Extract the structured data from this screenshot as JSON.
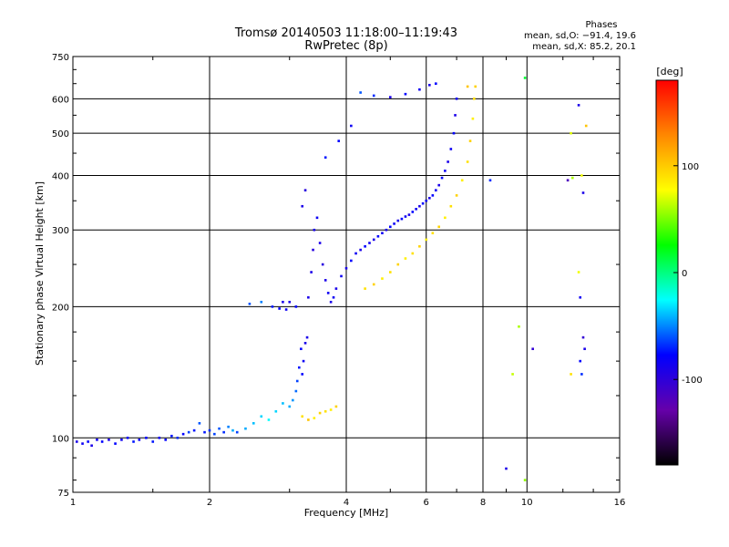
{
  "chart_data": {
    "type": "scatter",
    "title": "Tromsø 20140503 11:18:00–11:19:43",
    "subtitle": "RwPretec (8p)",
    "xlabel": "Frequency [MHz]",
    "ylabel": "Stationary phase Virtual Height [km]",
    "x_scale": "log",
    "y_scale": "log",
    "xlim": [
      1,
      16
    ],
    "ylim": [
      75,
      750
    ],
    "x_ticks": [
      1,
      2,
      4,
      6,
      8,
      10,
      16
    ],
    "y_ticks": [
      75,
      100,
      200,
      300,
      400,
      500,
      600,
      750
    ],
    "grid_x": [
      2,
      4,
      6,
      8,
      10
    ],
    "grid_y": [
      100,
      200,
      300,
      400,
      500,
      600
    ],
    "phase_stats": {
      "heading": "Phases",
      "o_line": "mean, sd,O: −91.4, 19.6",
      "x_line": "mean, sd,X:  85.2, 20.1"
    },
    "colorbar": {
      "unit_label": "[deg]",
      "range": [
        -180,
        180
      ],
      "ticks": [
        100,
        0,
        -100
      ],
      "colors": [
        "#ff0000",
        "#ff8800",
        "#ffff00",
        "#00ff00",
        "#00ffff",
        "#0000ff",
        "#6600aa",
        "#000000"
      ]
    },
    "series": [
      {
        "values": [
          [
            1.02,
            98,
            -110
          ],
          [
            1.05,
            97,
            -105
          ],
          [
            1.08,
            98,
            -100
          ],
          [
            1.1,
            96,
            -110
          ],
          [
            1.13,
            99,
            -105
          ],
          [
            1.16,
            98,
            -100
          ],
          [
            1.2,
            99,
            -110
          ],
          [
            1.24,
            97,
            -100
          ],
          [
            1.28,
            99,
            -105
          ],
          [
            1.32,
            100,
            -100
          ],
          [
            1.36,
            98,
            -95
          ],
          [
            1.4,
            99,
            -105
          ],
          [
            1.45,
            100,
            -100
          ],
          [
            1.5,
            98,
            -95
          ],
          [
            1.55,
            100,
            -105
          ],
          [
            1.6,
            99,
            -100
          ],
          [
            1.65,
            101,
            -95
          ],
          [
            1.7,
            100,
            -90
          ],
          [
            1.75,
            102,
            -100
          ],
          [
            1.8,
            103,
            -85
          ],
          [
            1.85,
            104,
            -95
          ],
          [
            1.9,
            108,
            -80
          ],
          [
            1.95,
            103,
            -95
          ],
          [
            2.0,
            104,
            -90
          ],
          [
            2.05,
            102,
            -85
          ],
          [
            2.1,
            105,
            -80
          ],
          [
            2.15,
            103,
            -90
          ],
          [
            2.2,
            106,
            -70
          ],
          [
            2.25,
            104,
            -60
          ],
          [
            2.3,
            103,
            -85
          ],
          [
            2.4,
            105,
            -60
          ],
          [
            2.5,
            108,
            -55
          ],
          [
            2.6,
            112,
            -50
          ],
          [
            2.7,
            110,
            -40
          ],
          [
            2.8,
            115,
            -50
          ],
          [
            2.9,
            120,
            -55
          ],
          [
            3.0,
            118,
            -60
          ],
          [
            3.05,
            122,
            -65
          ],
          [
            3.1,
            128,
            -75
          ],
          [
            3.12,
            135,
            -85
          ],
          [
            3.15,
            145,
            -95
          ],
          [
            3.18,
            160,
            -100
          ],
          [
            3.2,
            140,
            -100
          ],
          [
            3.22,
            150,
            -105
          ],
          [
            3.25,
            165,
            -110
          ],
          [
            3.28,
            170,
            -110
          ],
          [
            2.45,
            203,
            -80
          ],
          [
            2.6,
            205,
            -70
          ],
          [
            2.75,
            200,
            -95
          ],
          [
            2.85,
            198,
            -100
          ],
          [
            2.9,
            205,
            -110
          ],
          [
            2.95,
            197,
            -105
          ],
          [
            3.3,
            210,
            -110
          ],
          [
            3.35,
            240,
            -110
          ],
          [
            3.38,
            270,
            -115
          ],
          [
            3.4,
            300,
            -110
          ],
          [
            3.45,
            320,
            -105
          ],
          [
            3.5,
            280,
            -110
          ],
          [
            3.55,
            250,
            -115
          ],
          [
            3.6,
            230,
            -110
          ],
          [
            3.65,
            215,
            -105
          ],
          [
            3.7,
            205,
            -110
          ],
          [
            3.75,
            210,
            -105
          ],
          [
            3.8,
            220,
            -110
          ],
          [
            3.9,
            235,
            -105
          ],
          [
            4.0,
            245,
            -110
          ],
          [
            4.1,
            255,
            -100
          ],
          [
            4.2,
            265,
            -105
          ],
          [
            4.3,
            270,
            -110
          ],
          [
            4.4,
            275,
            -100
          ],
          [
            4.5,
            280,
            -105
          ],
          [
            4.6,
            285,
            -110
          ],
          [
            4.7,
            290,
            -100
          ],
          [
            4.8,
            295,
            -105
          ],
          [
            4.9,
            300,
            -110
          ],
          [
            5.0,
            305,
            -100
          ],
          [
            5.1,
            310,
            -105
          ],
          [
            5.2,
            315,
            -110
          ],
          [
            5.3,
            318,
            -100
          ],
          [
            5.4,
            322,
            -105
          ],
          [
            5.5,
            325,
            -110
          ],
          [
            5.6,
            330,
            -100
          ],
          [
            5.7,
            335,
            -105
          ],
          [
            5.8,
            340,
            -110
          ],
          [
            5.9,
            345,
            -100
          ],
          [
            6.0,
            350,
            -105
          ],
          [
            6.1,
            355,
            -110
          ],
          [
            6.2,
            360,
            -100
          ],
          [
            6.3,
            370,
            -105
          ],
          [
            6.4,
            380,
            -110
          ],
          [
            6.5,
            395,
            -100
          ],
          [
            6.6,
            410,
            -105
          ],
          [
            6.7,
            430,
            -110
          ],
          [
            6.8,
            460,
            -105
          ],
          [
            6.9,
            500,
            -100
          ],
          [
            6.95,
            550,
            -110
          ],
          [
            7.0,
            600,
            -105
          ],
          [
            4.3,
            620,
            -80
          ],
          [
            4.6,
            610,
            -90
          ],
          [
            5.0,
            605,
            -110
          ],
          [
            5.4,
            615,
            -100
          ],
          [
            5.8,
            630,
            -105
          ],
          [
            6.1,
            645,
            -110
          ],
          [
            6.3,
            650,
            -100
          ],
          [
            3.2,
            340,
            -110
          ],
          [
            3.25,
            370,
            -115
          ],
          [
            3.6,
            440,
            -95
          ],
          [
            3.85,
            480,
            -100
          ],
          [
            4.1,
            520,
            -105
          ],
          [
            3.0,
            205,
            -110
          ],
          [
            3.1,
            200,
            -100
          ]
        ]
      },
      {
        "values": [
          [
            3.2,
            112,
            110
          ],
          [
            3.3,
            110,
            120
          ],
          [
            3.4,
            111,
            105
          ],
          [
            3.5,
            114,
            115
          ],
          [
            3.6,
            115,
            110
          ],
          [
            3.7,
            116,
            105
          ],
          [
            3.8,
            118,
            115
          ],
          [
            4.4,
            220,
            110
          ],
          [
            4.6,
            225,
            115
          ],
          [
            4.8,
            232,
            105
          ],
          [
            5.0,
            240,
            110
          ],
          [
            5.2,
            250,
            115
          ],
          [
            5.4,
            258,
            105
          ],
          [
            5.6,
            265,
            110
          ],
          [
            5.8,
            275,
            115
          ],
          [
            6.0,
            285,
            105
          ],
          [
            6.2,
            295,
            110
          ],
          [
            6.4,
            305,
            115
          ],
          [
            6.6,
            320,
            105
          ],
          [
            6.8,
            340,
            110
          ],
          [
            7.0,
            360,
            115
          ],
          [
            7.2,
            390,
            105
          ],
          [
            7.4,
            430,
            110
          ],
          [
            7.5,
            480,
            115
          ],
          [
            7.6,
            540,
            105
          ],
          [
            7.65,
            600,
            110
          ],
          [
            7.7,
            640,
            115
          ],
          [
            7.4,
            640,
            120
          ]
        ]
      },
      {
        "values": [
          [
            8.3,
            390,
            -90
          ],
          [
            9.0,
            85,
            -110
          ],
          [
            9.9,
            670,
            0
          ],
          [
            10.3,
            160,
            -120
          ],
          [
            9.6,
            180,
            70
          ],
          [
            9.3,
            140,
            80
          ],
          [
            12.3,
            390,
            -130
          ],
          [
            12.5,
            500,
            90
          ],
          [
            13.0,
            580,
            -110
          ],
          [
            13.5,
            520,
            120
          ],
          [
            13.2,
            400,
            95
          ],
          [
            13.0,
            240,
            95
          ],
          [
            13.2,
            140,
            -90
          ],
          [
            13.3,
            170,
            -120
          ],
          [
            13.4,
            160,
            -110
          ],
          [
            13.1,
            150,
            -100
          ],
          [
            12.6,
            395,
            70
          ],
          [
            12.5,
            140,
            110
          ],
          [
            9.9,
            80,
            60
          ],
          [
            13.1,
            210,
            -105
          ],
          [
            13.3,
            365,
            -110
          ]
        ]
      }
    ]
  }
}
